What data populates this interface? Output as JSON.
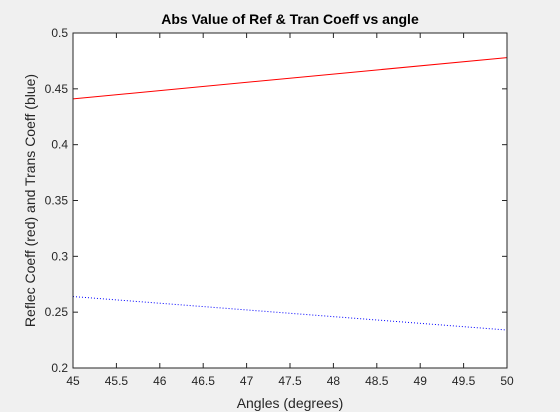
{
  "chart_data": {
    "type": "line",
    "title": "Abs Value of Ref & Tran Coeff vs angle",
    "xlabel": "Angles (degrees)",
    "ylabel": "Reflec Coeff (red) and Trans Coeff (blue)",
    "xlim": [
      45,
      50
    ],
    "ylim": [
      0.2,
      0.5
    ],
    "xticks": [
      "45",
      "45.5",
      "46",
      "46.5",
      "47",
      "47.5",
      "48",
      "48.5",
      "49",
      "49.5",
      "50"
    ],
    "yticks": [
      "0.2",
      "0.25",
      "0.3",
      "0.35",
      "0.4",
      "0.45",
      "0.5"
    ],
    "grid": false,
    "legend": "none",
    "series": [
      {
        "color": "#ff0000",
        "line_style": "solid",
        "x": [
          45,
          50
        ],
        "y": [
          0.441,
          0.478
        ]
      },
      {
        "color": "#0000ff",
        "line_style": "dotted",
        "x": [
          45,
          50
        ],
        "y": [
          0.264,
          0.234
        ]
      }
    ]
  }
}
